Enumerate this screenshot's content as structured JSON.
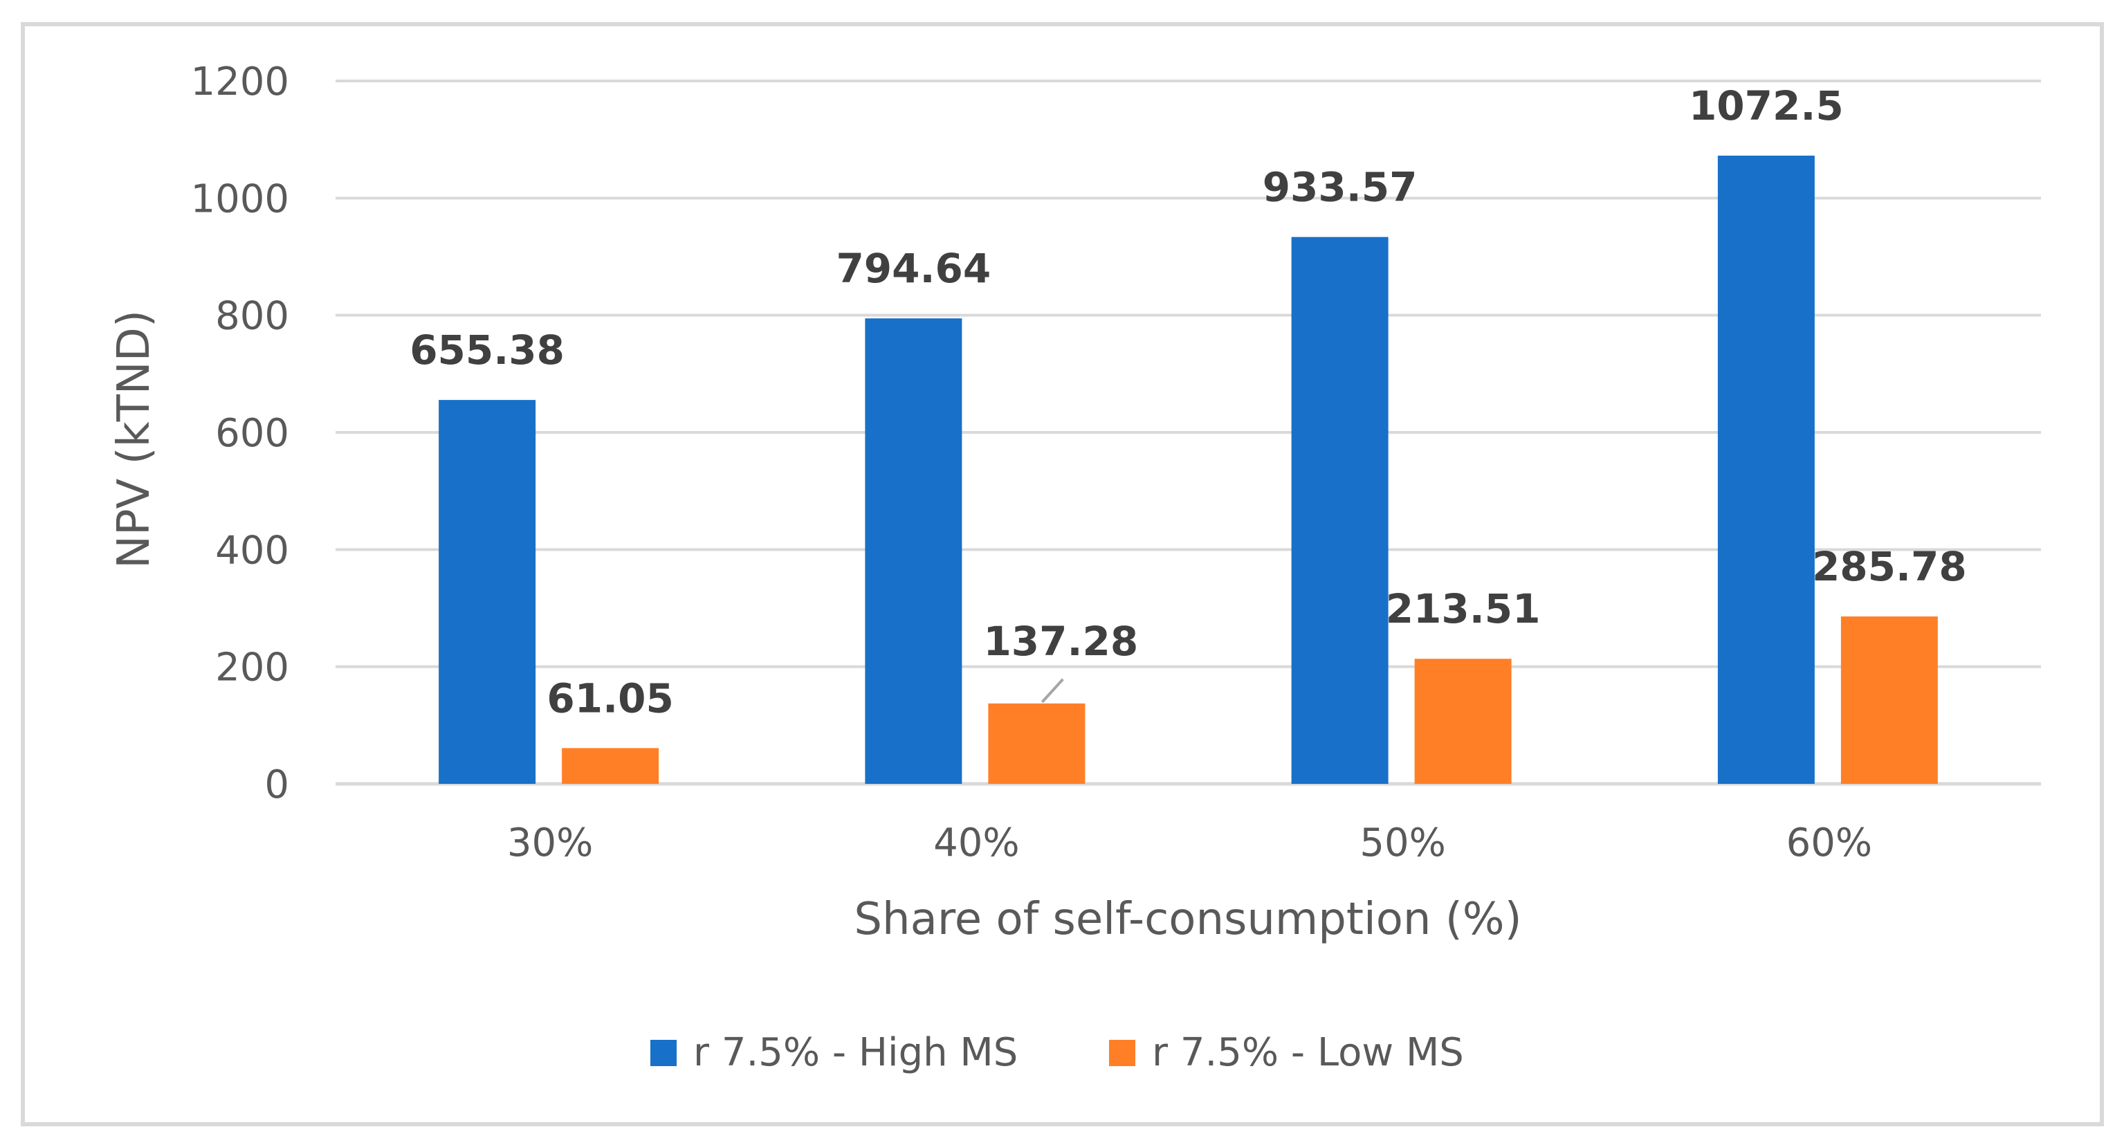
{
  "chart_data": {
    "type": "bar",
    "title": "",
    "xlabel": "Share of self-consumption (%)",
    "ylabel": "NPV (kTND)",
    "categories": [
      "30%",
      "40%",
      "50%",
      "60%"
    ],
    "series": [
      {
        "name": "r 7.5% - High MS",
        "color": "#1870c8",
        "values": [
          655.38,
          794.64,
          933.57,
          1072.5
        ],
        "labels": [
          "655.38",
          "794.64",
          "933.57",
          "1072.5"
        ]
      },
      {
        "name": "r 7.5% - Low MS",
        "color": "#ff7f27",
        "values": [
          61.05,
          137.28,
          213.51,
          285.78
        ],
        "labels": [
          "61.05",
          "137.28",
          "213.51",
          "285.78"
        ]
      }
    ],
    "ylim": [
      0,
      1200
    ],
    "yticks": [
      0,
      200,
      400,
      600,
      800,
      1000,
      1200
    ],
    "yticks_labels": [
      "0",
      "200",
      "400",
      "600",
      "800",
      "1000",
      "1200"
    ],
    "grid": true,
    "legend_position": "bottom-center"
  }
}
